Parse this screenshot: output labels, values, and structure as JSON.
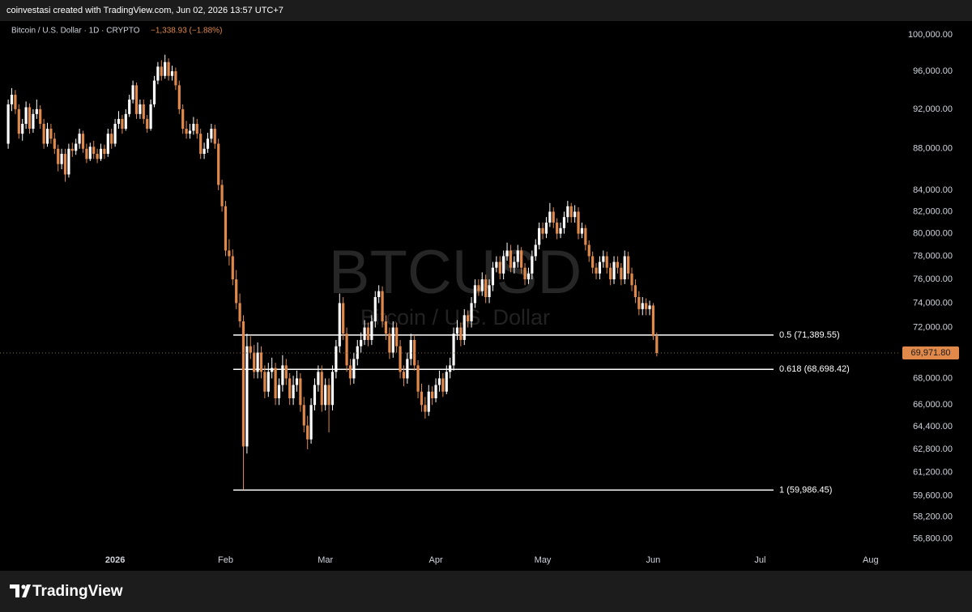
{
  "chart_data": {
    "type": "candlestick",
    "caption": "coinvestasi created with TradingView.com, Jun 02, 2026 13:57 UTC+7",
    "title": "Bitcoin / U.S. Dollar · 1D · CRYPTO",
    "change_label": "−1,338.93 (−1.88%)",
    "watermark": "BTCUSD",
    "watermark_subtitle": "Bitcoin / U.S. Dollar",
    "brand": "TradingView",
    "up_color": "#ffffff",
    "down_color": "#e0894a",
    "log_scale": true,
    "ylim": [
      55800,
      101200
    ],
    "yticks": [
      {
        "value": 100000,
        "label": "100,000.00"
      },
      {
        "value": 96000,
        "label": "96,000.00"
      },
      {
        "value": 92000,
        "label": "92,000.00"
      },
      {
        "value": 88000,
        "label": "88,000.00"
      },
      {
        "value": 84000,
        "label": "84,000.00"
      },
      {
        "value": 82000,
        "label": "82,000.00"
      },
      {
        "value": 80000,
        "label": "80,000.00"
      },
      {
        "value": 78000,
        "label": "78,000.00"
      },
      {
        "value": 76000,
        "label": "76,000.00"
      },
      {
        "value": 74000,
        "label": "74,000.00"
      },
      {
        "value": 72000,
        "label": "72,000.00"
      },
      {
        "value": 68000,
        "label": "68,000.00"
      },
      {
        "value": 66000,
        "label": "66,000.00"
      },
      {
        "value": 64400,
        "label": "64,400.00"
      },
      {
        "value": 62800,
        "label": "62,800.00"
      },
      {
        "value": 61200,
        "label": "61,200.00"
      },
      {
        "value": 59600,
        "label": "59,600.00"
      },
      {
        "value": 58200,
        "label": "58,200.00"
      },
      {
        "value": 56800,
        "label": "56,800.00"
      }
    ],
    "xlim": [
      -2.3,
      250
    ],
    "xticks": [
      {
        "value": 30,
        "label": "2026"
      },
      {
        "value": 61,
        "label": "Feb"
      },
      {
        "value": 89,
        "label": "Mar"
      },
      {
        "value": 120,
        "label": "Apr"
      },
      {
        "value": 150,
        "label": "May"
      },
      {
        "value": 181,
        "label": "Jun"
      },
      {
        "value": 211,
        "label": "Jul"
      },
      {
        "value": 242,
        "label": "Aug"
      }
    ],
    "last_price": {
      "value": 69971.8,
      "label": "69,971.80"
    },
    "levels": [
      {
        "value": 71389.55,
        "label": "0.5 (71,389.55)"
      },
      {
        "value": 68698.42,
        "label": "0.618 (68,698.42)"
      },
      {
        "value": 59986.45,
        "label": "1 (59,986.45)"
      }
    ],
    "candles": [
      [
        88500,
        93000,
        88000,
        92500
      ],
      [
        92500,
        94200,
        91800,
        93500
      ],
      [
        93500,
        94000,
        91500,
        92000
      ],
      [
        92000,
        92500,
        89000,
        89500
      ],
      [
        89500,
        91000,
        88800,
        90500
      ],
      [
        90500,
        92800,
        90000,
        92200
      ],
      [
        92200,
        92600,
        89500,
        90000
      ],
      [
        90000,
        92000,
        89600,
        91500
      ],
      [
        91500,
        93000,
        91000,
        92000
      ],
      [
        92000,
        92400,
        90000,
        90500
      ],
      [
        90500,
        91000,
        88000,
        88500
      ],
      [
        88500,
        90600,
        88200,
        90000
      ],
      [
        90000,
        90500,
        88500,
        89000
      ],
      [
        89000,
        89600,
        87500,
        88000
      ],
      [
        88000,
        88400,
        85800,
        86500
      ],
      [
        86500,
        88000,
        86000,
        87500
      ],
      [
        87500,
        88000,
        84800,
        85500
      ],
      [
        85500,
        88500,
        85200,
        88000
      ],
      [
        88000,
        88600,
        87200,
        87800
      ],
      [
        87800,
        89000,
        87400,
        88500
      ],
      [
        88500,
        90000,
        88000,
        89500
      ],
      [
        89500,
        89800,
        87600,
        88000
      ],
      [
        88000,
        88500,
        86600,
        87000
      ],
      [
        87000,
        88600,
        86800,
        88200
      ],
      [
        88200,
        88800,
        87000,
        87500
      ],
      [
        87500,
        88000,
        86600,
        87000
      ],
      [
        87000,
        88500,
        86800,
        88000
      ],
      [
        88000,
        88400,
        87000,
        87500
      ],
      [
        87500,
        90000,
        87200,
        89500
      ],
      [
        89500,
        90000,
        88000,
        88500
      ],
      [
        88500,
        91000,
        88200,
        90500
      ],
      [
        90500,
        91800,
        90000,
        91000
      ],
      [
        91000,
        91400,
        89500,
        90000
      ],
      [
        90000,
        92000,
        89800,
        91500
      ],
      [
        91500,
        93500,
        91200,
        93000
      ],
      [
        93000,
        95000,
        92600,
        94500
      ],
      [
        94500,
        94800,
        91000,
        91500
      ],
      [
        91500,
        93000,
        91000,
        92500
      ],
      [
        92500,
        93000,
        90500,
        91000
      ],
      [
        91000,
        91400,
        89600,
        90000
      ],
      [
        90000,
        93000,
        89800,
        92500
      ],
      [
        92500,
        95500,
        92200,
        95000
      ],
      [
        95000,
        97000,
        94600,
        96500
      ],
      [
        96500,
        97200,
        95000,
        95500
      ],
      [
        95500,
        97800,
        95200,
        97000
      ],
      [
        97000,
        97400,
        95000,
        95500
      ],
      [
        95500,
        96600,
        95000,
        96000
      ],
      [
        96000,
        96400,
        94000,
        94500
      ],
      [
        94500,
        95000,
        91500,
        92000
      ],
      [
        92000,
        92500,
        89500,
        90000
      ],
      [
        90000,
        90800,
        89000,
        89500
      ],
      [
        89500,
        90500,
        89000,
        89800
      ],
      [
        89800,
        91200,
        89400,
        90500
      ],
      [
        90500,
        91000,
        89000,
        89500
      ],
      [
        89500,
        90000,
        87000,
        87500
      ],
      [
        87500,
        88600,
        87000,
        88000
      ],
      [
        88000,
        89600,
        87600,
        89000
      ],
      [
        89000,
        90500,
        88600,
        90000
      ],
      [
        90000,
        90400,
        88000,
        88500
      ],
      [
        88500,
        89000,
        84000,
        84500
      ],
      [
        84500,
        85000,
        82000,
        82500
      ],
      [
        82500,
        83000,
        78000,
        78500
      ],
      [
        78500,
        79500,
        77200,
        78000
      ],
      [
        78000,
        78600,
        75500,
        76000
      ],
      [
        76000,
        76800,
        73500,
        74000
      ],
      [
        74000,
        74800,
        72000,
        72500
      ],
      [
        72500,
        73000,
        60000,
        63000
      ],
      [
        63000,
        71500,
        62500,
        70500
      ],
      [
        70500,
        71300,
        69500,
        70000
      ],
      [
        70000,
        70600,
        68000,
        68500
      ],
      [
        68500,
        70800,
        68000,
        70000
      ],
      [
        70000,
        70500,
        68000,
        68500
      ],
      [
        68500,
        69000,
        66500,
        67000
      ],
      [
        67000,
        69200,
        66600,
        68500
      ],
      [
        68500,
        69600,
        68000,
        68800
      ],
      [
        68800,
        69200,
        66000,
        66500
      ],
      [
        66500,
        68000,
        66000,
        67500
      ],
      [
        67500,
        69800,
        67000,
        69000
      ],
      [
        69000,
        69500,
        67500,
        68000
      ],
      [
        68000,
        68400,
        66000,
        66500
      ],
      [
        66500,
        68200,
        66000,
        67500
      ],
      [
        67500,
        68600,
        67000,
        68000
      ],
      [
        68000,
        68400,
        65500,
        66000
      ],
      [
        66000,
        66600,
        64000,
        64500
      ],
      [
        64500,
        65200,
        62800,
        63500
      ],
      [
        63500,
        66500,
        63200,
        66000
      ],
      [
        66000,
        68000,
        65600,
        67500
      ],
      [
        67500,
        69000,
        67000,
        68500
      ],
      [
        68500,
        69000,
        65500,
        66000
      ],
      [
        66000,
        68000,
        65600,
        67500
      ],
      [
        67500,
        68000,
        64000,
        66000
      ],
      [
        66000,
        69000,
        65600,
        68500
      ],
      [
        68500,
        71000,
        68000,
        70500
      ],
      [
        70500,
        74800,
        70000,
        74000
      ],
      [
        74000,
        74500,
        71000,
        71500
      ],
      [
        71500,
        72000,
        68500,
        69000
      ],
      [
        69000,
        69500,
        67500,
        68000
      ],
      [
        68000,
        70000,
        67600,
        69500
      ],
      [
        69500,
        71000,
        69000,
        70500
      ],
      [
        70500,
        71600,
        70000,
        71000
      ],
      [
        71000,
        72600,
        70600,
        72000
      ],
      [
        72000,
        72400,
        70500,
        71000
      ],
      [
        71000,
        73000,
        70600,
        72500
      ],
      [
        72500,
        75000,
        72000,
        74500
      ],
      [
        74500,
        75500,
        74000,
        75000
      ],
      [
        75000,
        75400,
        72000,
        72500
      ],
      [
        72500,
        73000,
        71000,
        71500
      ],
      [
        71500,
        72000,
        69500,
        70000
      ],
      [
        70000,
        72500,
        69600,
        72000
      ],
      [
        72000,
        72400,
        70000,
        70500
      ],
      [
        70500,
        71000,
        68000,
        68500
      ],
      [
        68500,
        69000,
        67400,
        68000
      ],
      [
        68000,
        70000,
        67600,
        69500
      ],
      [
        69500,
        71500,
        69000,
        71000
      ],
      [
        71000,
        71400,
        68600,
        69000
      ],
      [
        69000,
        69400,
        66500,
        67000
      ],
      [
        67000,
        67600,
        65500,
        66000
      ],
      [
        66000,
        66600,
        65000,
        65500
      ],
      [
        65500,
        67500,
        65200,
        67000
      ],
      [
        67000,
        67400,
        66000,
        66500
      ],
      [
        66500,
        68000,
        66200,
        67500
      ],
      [
        67500,
        68600,
        67000,
        68000
      ],
      [
        68000,
        68400,
        66600,
        67000
      ],
      [
        67000,
        69000,
        66800,
        68500
      ],
      [
        68500,
        69600,
        68000,
        69000
      ],
      [
        69000,
        72000,
        68600,
        71500
      ],
      [
        71500,
        72600,
        71000,
        72000
      ],
      [
        72000,
        72400,
        70500,
        71000
      ],
      [
        71000,
        73500,
        70600,
        73000
      ],
      [
        73000,
        73400,
        72000,
        72500
      ],
      [
        72500,
        74500,
        72000,
        74000
      ],
      [
        74000,
        76000,
        73600,
        75500
      ],
      [
        75500,
        76000,
        74600,
        75000
      ],
      [
        75000,
        76600,
        74600,
        76000
      ],
      [
        76000,
        76400,
        74000,
        74500
      ],
      [
        74500,
        76000,
        74000,
        75500
      ],
      [
        75500,
        77500,
        75000,
        77000
      ],
      [
        77000,
        78000,
        76600,
        77500
      ],
      [
        77500,
        78000,
        76000,
        76500
      ],
      [
        76500,
        78500,
        76000,
        78000
      ],
      [
        78000,
        79200,
        77600,
        78500
      ],
      [
        78500,
        79000,
        76600,
        77000
      ],
      [
        77000,
        78000,
        76500,
        77500
      ],
      [
        77500,
        79000,
        77000,
        78500
      ],
      [
        78500,
        78800,
        76500,
        77000
      ],
      [
        77000,
        77400,
        75500,
        76000
      ],
      [
        76000,
        77000,
        75600,
        76500
      ],
      [
        76500,
        78500,
        76000,
        78000
      ],
      [
        78000,
        79500,
        77600,
        79000
      ],
      [
        79000,
        81000,
        78600,
        80500
      ],
      [
        80500,
        81000,
        79500,
        80000
      ],
      [
        80000,
        81500,
        79600,
        81000
      ],
      [
        81000,
        82800,
        80600,
        82000
      ],
      [
        82000,
        82400,
        80500,
        81000
      ],
      [
        81000,
        81400,
        79500,
        80000
      ],
      [
        80000,
        81000,
        79600,
        80500
      ],
      [
        80500,
        82000,
        80000,
        81500
      ],
      [
        81500,
        83000,
        81000,
        82500
      ],
      [
        82500,
        82800,
        81000,
        81500
      ],
      [
        81500,
        82600,
        81000,
        82000
      ],
      [
        82000,
        82400,
        79500,
        80000
      ],
      [
        80000,
        81000,
        79600,
        80500
      ],
      [
        80500,
        80800,
        78500,
        79000
      ],
      [
        79000,
        79400,
        77500,
        78000
      ],
      [
        78000,
        78400,
        76500,
        77000
      ],
      [
        77000,
        77400,
        76000,
        76500
      ],
      [
        76500,
        78000,
        76000,
        77500
      ],
      [
        77500,
        78500,
        77000,
        78000
      ],
      [
        78000,
        78400,
        76500,
        77000
      ],
      [
        77000,
        77400,
        75500,
        76000
      ],
      [
        76000,
        78000,
        75600,
        77500
      ],
      [
        77500,
        78000,
        76500,
        77000
      ],
      [
        77000,
        77400,
        75500,
        76000
      ],
      [
        76000,
        78500,
        75600,
        78000
      ],
      [
        78000,
        78400,
        76000,
        76500
      ],
      [
        76500,
        77000,
        75000,
        75500
      ],
      [
        75500,
        76000,
        74000,
        74500
      ],
      [
        74500,
        75000,
        73000,
        73500
      ],
      [
        73500,
        74500,
        73000,
        74000
      ],
      [
        74000,
        74400,
        73000,
        73500
      ],
      [
        73500,
        74200,
        73000,
        73800
      ],
      [
        73800,
        74000,
        71000,
        71310.73
      ],
      [
        71310.73,
        71600,
        69700,
        69971.8
      ]
    ]
  }
}
